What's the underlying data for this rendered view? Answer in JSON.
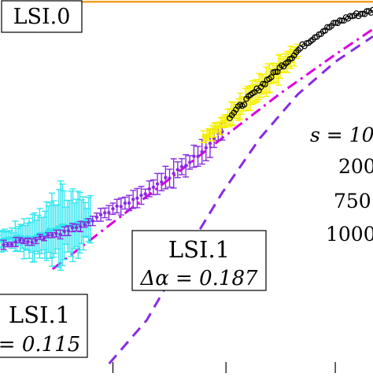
{
  "chart_data": {
    "type": "scatter",
    "xlim": [
      0.0,
      1.0
    ],
    "ylim": [
      0.0,
      1.0
    ],
    "grid": false,
    "legend_position": "right (cropped)",
    "legend_lines": [
      {
        "prefix": "s = 10",
        "value": ""
      },
      {
        "prefix": "",
        "value": "200"
      },
      {
        "prefix": "",
        "value": "750"
      },
      {
        "prefix": "",
        "value": "1000"
      }
    ],
    "annotations": [
      {
        "id": "lsi0",
        "line1": "LSI.0",
        "line2": ""
      },
      {
        "id": "lsi1_mid",
        "line1": "LSI.1",
        "line2": "Δα = 0.187"
      },
      {
        "id": "lsi1_left",
        "line1": "LSI.1",
        "line2": "= 0.115"
      }
    ],
    "series": [
      {
        "marker": "errorbar",
        "color": "#33e6f0",
        "x": [
          0.0,
          0.05,
          0.1,
          0.13,
          0.15,
          0.17,
          0.19,
          0.21,
          0.23,
          0.25
        ],
        "y": [
          0.34,
          0.345,
          0.35,
          0.36,
          0.37,
          0.375,
          0.38,
          0.385,
          0.39,
          0.395
        ],
        "err": [
          0.02,
          0.03,
          0.05,
          0.07,
          0.08,
          0.09,
          0.08,
          0.07,
          0.06,
          0.05
        ]
      },
      {
        "marker": "errorbar",
        "color": "#8a2be2",
        "x": [
          0.02,
          0.1,
          0.2,
          0.26,
          0.3,
          0.35,
          0.4,
          0.44,
          0.48,
          0.52,
          0.56,
          0.6
        ],
        "y": [
          0.33,
          0.34,
          0.37,
          0.4,
          0.42,
          0.44,
          0.47,
          0.5,
          0.53,
          0.56,
          0.6,
          0.64
        ],
        "err": [
          0.01,
          0.01,
          0.01,
          0.012,
          0.015,
          0.018,
          0.02,
          0.025,
          0.03,
          0.03,
          0.03,
          0.025
        ]
      },
      {
        "marker": "errorbar",
        "color": "#f5f000",
        "x": [
          0.55,
          0.6,
          0.64,
          0.68,
          0.72,
          0.76,
          0.8
        ],
        "y": [
          0.62,
          0.66,
          0.7,
          0.74,
          0.78,
          0.82,
          0.86
        ],
        "err": [
          0.015,
          0.02,
          0.025,
          0.03,
          0.03,
          0.03,
          0.025
        ]
      },
      {
        "marker": "circle",
        "color": "#000000",
        "x": [
          0.62,
          0.66,
          0.7,
          0.74,
          0.78,
          0.82,
          0.86,
          0.9,
          0.94,
          0.98,
          1.0
        ],
        "y": [
          0.68,
          0.72,
          0.76,
          0.8,
          0.84,
          0.88,
          0.91,
          0.935,
          0.955,
          0.965,
          0.97
        ]
      }
    ],
    "reference_lines": [
      {
        "style": "solid",
        "color": "#f0a020",
        "x": [
          0.22,
          1.0
        ],
        "y": [
          0.995,
          0.995
        ]
      },
      {
        "style": "dashdot",
        "color": "#dd00dd",
        "x": [
          0.15,
          0.3,
          0.45,
          0.6,
          0.75,
          0.9,
          1.0
        ],
        "y": [
          0.26,
          0.38,
          0.5,
          0.62,
          0.74,
          0.85,
          0.92
        ]
      },
      {
        "style": "dashed",
        "color": "#8a2be2",
        "x": [
          0.3,
          0.4,
          0.5,
          0.6,
          0.7,
          0.8,
          0.9,
          1.0
        ],
        "y": [
          0.0,
          0.12,
          0.3,
          0.47,
          0.62,
          0.74,
          0.83,
          0.9
        ]
      }
    ],
    "x_ticks": [
      0.31,
      0.61,
      0.9
    ]
  }
}
